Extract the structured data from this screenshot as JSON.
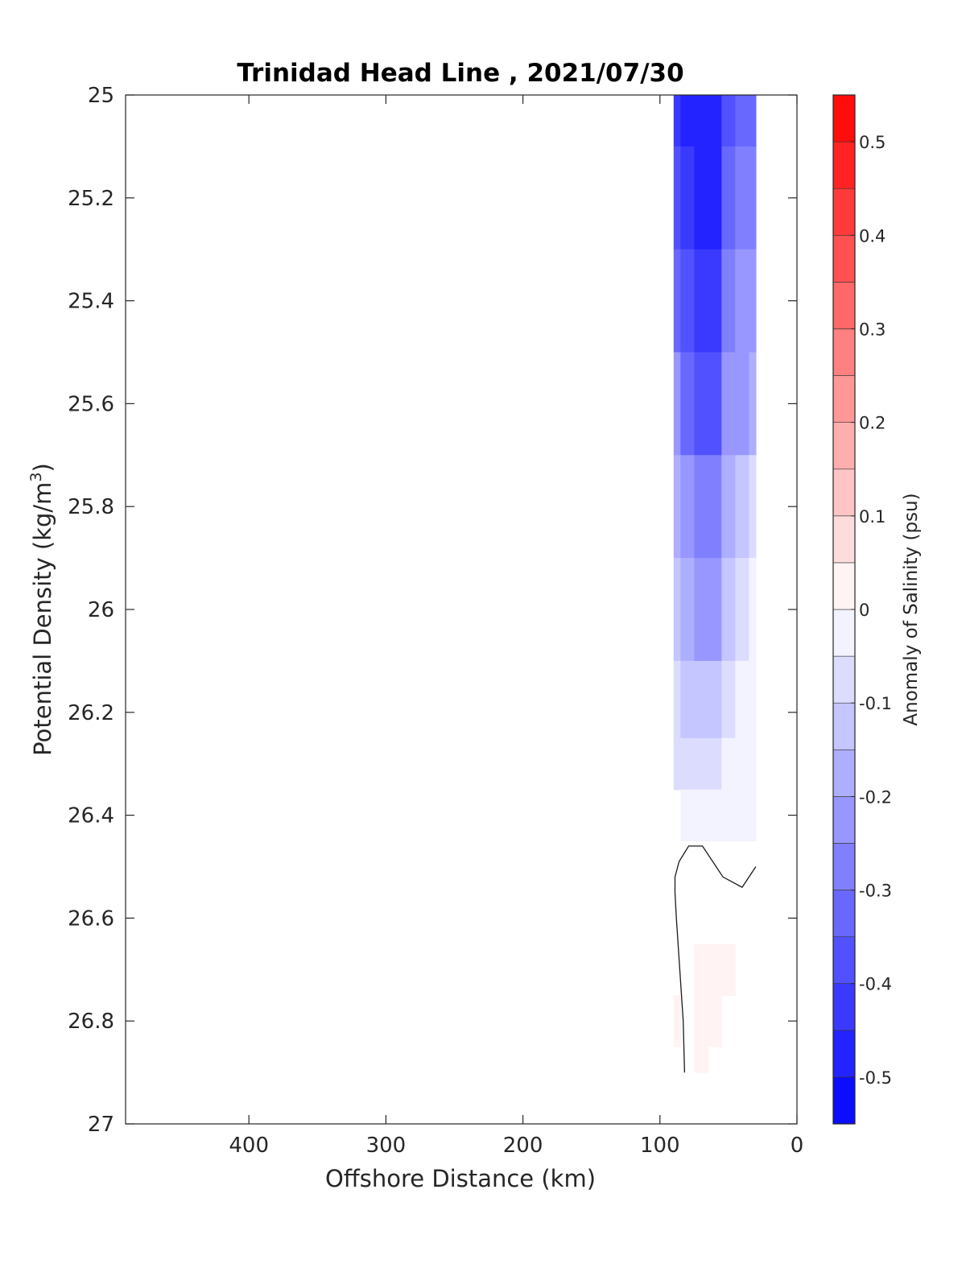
{
  "chart_data": {
    "type": "heatmap",
    "title": "Trinidad Head Line , 2021/07/30",
    "xlabel": "Offshore Distance (km)",
    "ylabel_main": "Potential Density (kg/m",
    "ylabel_sup": "3",
    "ylabel_end": ")",
    "colorbar_label": "Anomaly of Salinity (psu)",
    "xlim": [
      490,
      0
    ],
    "ylim": [
      25,
      27
    ],
    "x_reversed": true,
    "y_reversed": true,
    "x_ticks": [
      400,
      300,
      200,
      100,
      0
    ],
    "y_ticks": [
      25,
      25.2,
      25.4,
      25.6,
      25.8,
      26,
      26.2,
      26.4,
      26.6,
      26.8,
      27
    ],
    "y_tick_labels": [
      "25",
      "25.2",
      "25.4",
      "25.6",
      "25.8",
      "26",
      "26.2",
      "26.4",
      "26.6",
      "26.8",
      "27"
    ],
    "colorbar_range": [
      -0.55,
      0.55
    ],
    "colorbar_step": 0.05,
    "colorbar_ticks": [
      0.5,
      0.4,
      0.3,
      0.2,
      0.1,
      0,
      -0.1,
      -0.2,
      -0.3,
      -0.4,
      -0.5
    ],
    "colorbar_tick_labels": [
      "0.5",
      "0.4",
      "0.3",
      "0.2",
      "0.1",
      "0",
      "-0.1",
      "-0.2",
      "-0.3",
      "-0.4",
      "-0.5"
    ],
    "colormap": "blue-white-red",
    "colors": {
      "negative": "#0000ff",
      "zero": "#ffffff",
      "positive": "#ff0000"
    },
    "grid": false,
    "stations_km": [
      90,
      80,
      70,
      60,
      50,
      40,
      30
    ],
    "density_levels": [
      25.0,
      25.2,
      25.4,
      25.6,
      25.8,
      26.0,
      26.2,
      26.3,
      26.4,
      26.5,
      26.6,
      26.7,
      26.8,
      26.9
    ],
    "anomaly_grid": [
      [
        -0.42,
        -0.47,
        -0.5,
        -0.49,
        -0.36,
        -0.33,
        -0.32
      ],
      [
        -0.37,
        -0.44,
        -0.48,
        -0.47,
        -0.32,
        -0.29,
        -0.28
      ],
      [
        -0.31,
        -0.39,
        -0.45,
        -0.45,
        -0.29,
        -0.25,
        -0.24
      ],
      [
        -0.25,
        -0.32,
        -0.38,
        -0.38,
        -0.24,
        -0.21,
        -0.19
      ],
      [
        -0.19,
        -0.25,
        -0.29,
        -0.29,
        -0.17,
        -0.13,
        -0.1
      ],
      [
        -0.14,
        -0.19,
        -0.22,
        -0.22,
        -0.12,
        -0.06,
        -0.03
      ],
      [
        -0.09,
        -0.13,
        -0.14,
        -0.14,
        -0.06,
        -0.03,
        -0.03
      ],
      [
        -0.06,
        -0.08,
        -0.08,
        -0.07,
        -0.04,
        -0.02,
        -0.02
      ],
      [
        null,
        -0.02,
        -0.02,
        -0.03,
        -0.03,
        -0.02,
        -0.01
      ],
      [
        null,
        null,
        null,
        null,
        null,
        null,
        null
      ],
      [
        null,
        null,
        null,
        null,
        null,
        null,
        null
      ],
      [
        null,
        null,
        0.01,
        0.01,
        0.01,
        null,
        null
      ],
      [
        0.002,
        null,
        0.01,
        0.01,
        null,
        null,
        null
      ],
      [
        null,
        null,
        0.01,
        null,
        null,
        null,
        null
      ]
    ],
    "zero_contour": [
      [
        82,
        26.9
      ],
      [
        83,
        26.8
      ],
      [
        88,
        26.6
      ],
      [
        89,
        26.55
      ],
      [
        89,
        26.52
      ],
      [
        86,
        26.49
      ],
      [
        79,
        26.46
      ],
      [
        69,
        26.46
      ],
      [
        54,
        26.52
      ],
      [
        40,
        26.54
      ],
      [
        30,
        26.5
      ]
    ]
  }
}
